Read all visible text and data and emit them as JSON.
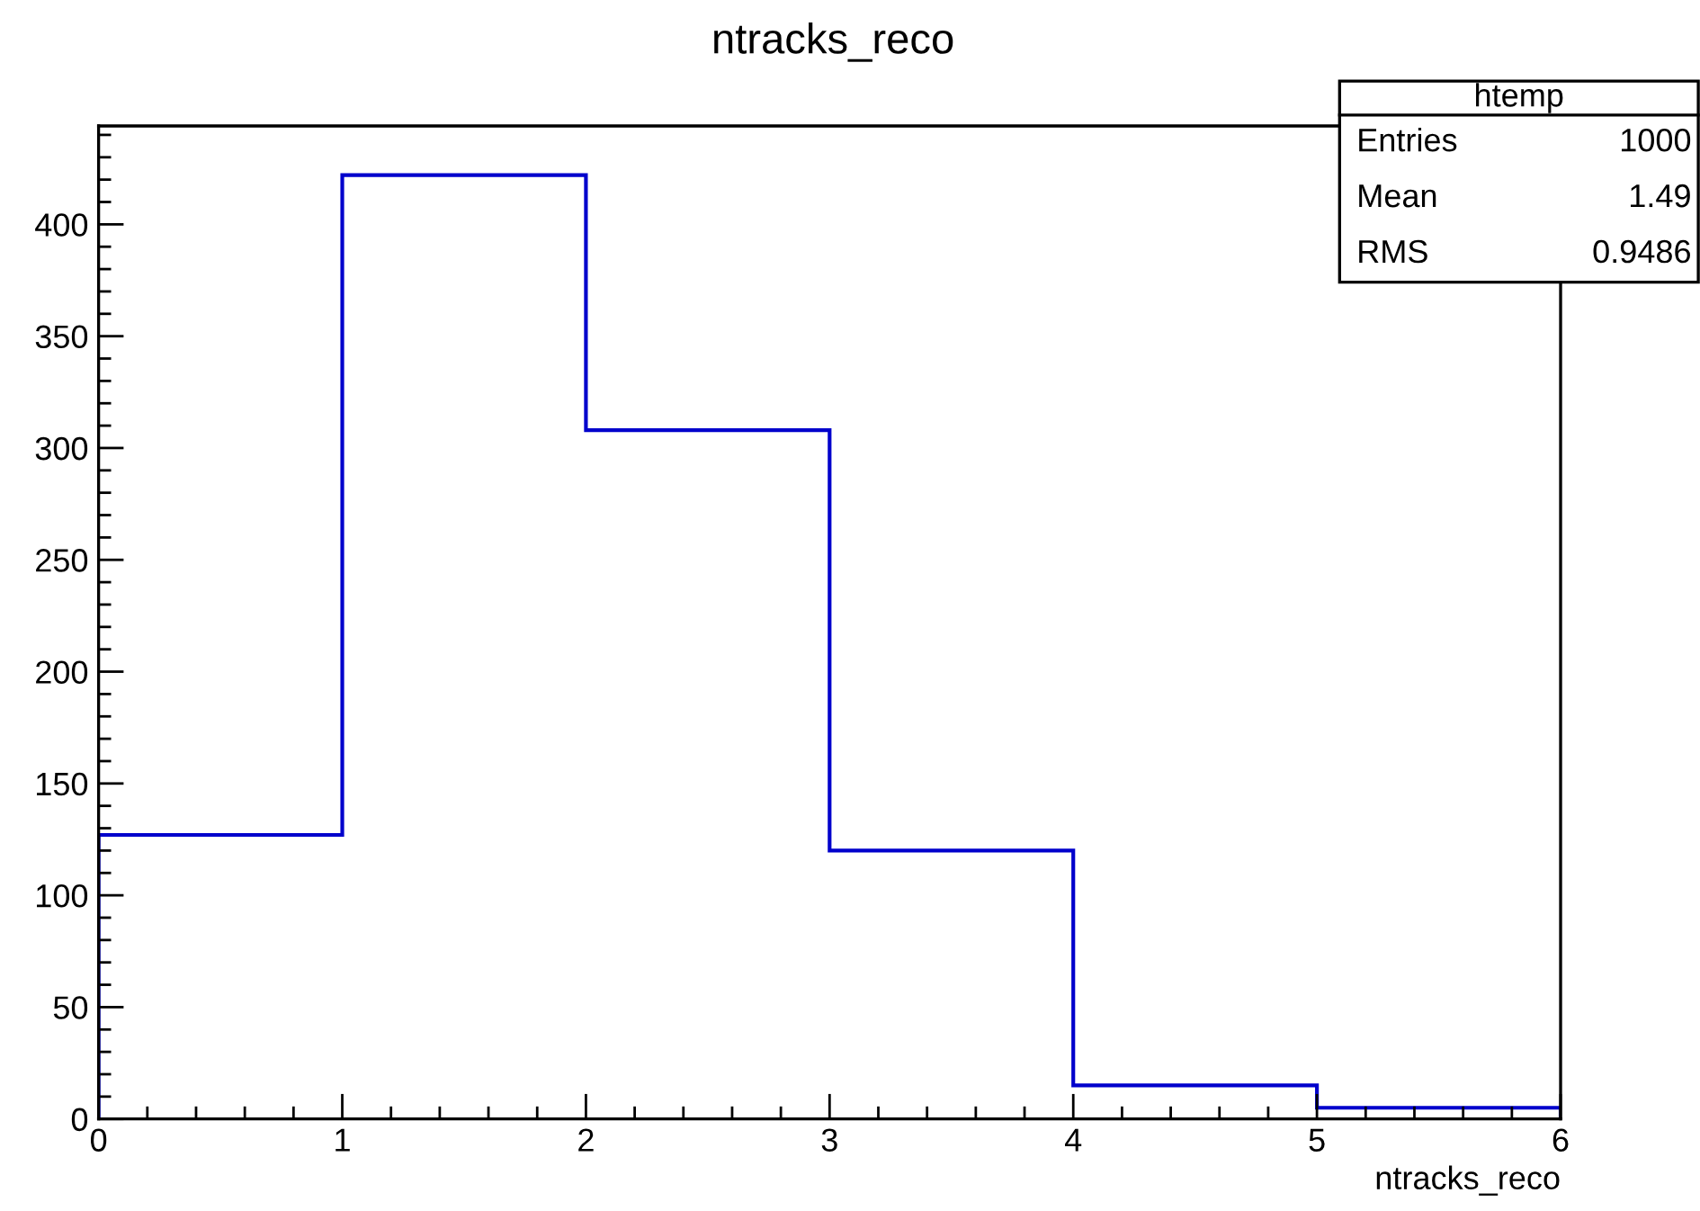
{
  "chart_data": {
    "type": "histogram",
    "title": "ntracks_reco",
    "xlabel": "ntracks_reco",
    "bins": [
      0,
      1,
      2,
      3,
      4,
      5,
      6
    ],
    "values": [
      127,
      422,
      308,
      120,
      15,
      5
    ],
    "color": "#0000cc",
    "xlim": [
      0,
      6
    ],
    "xticks": [
      0,
      1,
      2,
      3,
      4,
      5,
      6
    ],
    "ylim": [
      0,
      444
    ],
    "yticks": [
      0,
      50,
      100,
      150,
      200,
      250,
      300,
      350,
      400
    ],
    "grid": false,
    "annotations": [
      "htemp",
      "Entries",
      "1000",
      "Mean",
      "1.49",
      "RMS",
      "0.9486"
    ]
  }
}
